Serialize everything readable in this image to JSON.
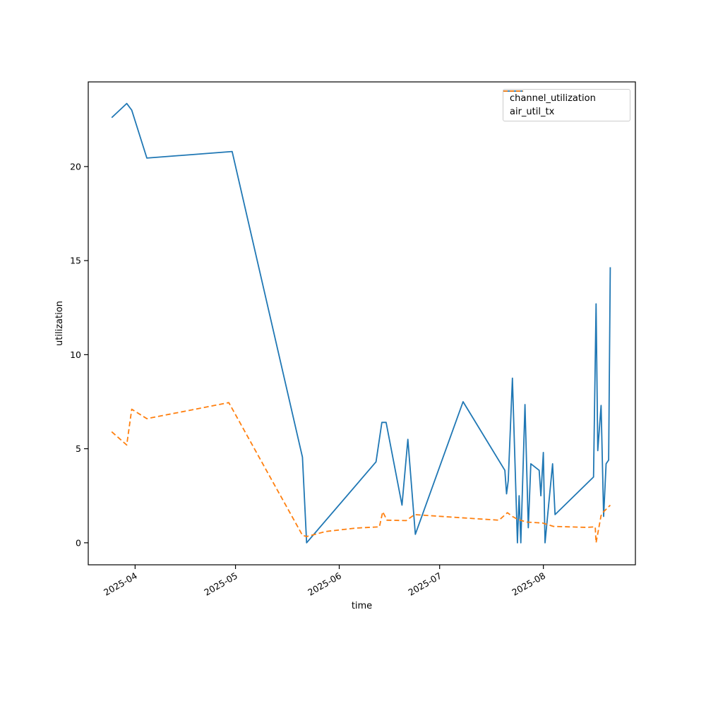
{
  "figure": {
    "background_color": "#ffffff",
    "text_color": "#000000",
    "frame_color": "#000000",
    "legend_border_color": "#cccccc"
  },
  "chart_data": {
    "type": "line",
    "title": "",
    "xlabel": "time",
    "ylabel": "utilization",
    "grid": false,
    "legend_position": "upper right",
    "x_domain": [
      "2025-03-18T00:00",
      "2025-08-28T12:00"
    ],
    "y_domain": [
      -1.17,
      24.5
    ],
    "x_ticks": [
      {
        "t": "2025-04-01T00:00",
        "label": "2025-04"
      },
      {
        "t": "2025-05-01T00:00",
        "label": "2025-05"
      },
      {
        "t": "2025-06-01T00:00",
        "label": "2025-06"
      },
      {
        "t": "2025-07-01T00:00",
        "label": "2025-07"
      },
      {
        "t": "2025-08-01T00:00",
        "label": "2025-08"
      }
    ],
    "y_ticks": [
      0,
      5,
      10,
      15,
      20
    ],
    "series": [
      {
        "name": "channel_utilization",
        "color": "#1f77b4",
        "line_style": "solid",
        "x": [
          "2025-03-25T00:00",
          "2025-03-29T12:00",
          "2025-03-31T00:00",
          "2025-04-04T12:00",
          "2025-04-30T00:00",
          "2025-05-21T00:00",
          "2025-05-22T06:00",
          "2025-06-12T00:00",
          "2025-06-13T18:00",
          "2025-06-15T00:00",
          "2025-06-19T18:00",
          "2025-06-21T12:00",
          "2025-06-23T18:00",
          "2025-07-08T00:00",
          "2025-07-20T12:00",
          "2025-07-21T00:00",
          "2025-07-21T12:00",
          "2025-07-22T18:00",
          "2025-07-24T06:00",
          "2025-07-24T18:00",
          "2025-07-25T06:00",
          "2025-07-26T12:00",
          "2025-07-27T12:00",
          "2025-07-28T06:00",
          "2025-07-30T18:00",
          "2025-07-31T06:00",
          "2025-08-01T00:00",
          "2025-08-01T12:00",
          "2025-08-03T18:00",
          "2025-08-04T12:00",
          "2025-08-16T00:00",
          "2025-08-16T18:00",
          "2025-08-17T06:00",
          "2025-08-18T06:00",
          "2025-08-19T00:00",
          "2025-08-19T18:00",
          "2025-08-20T12:00",
          "2025-08-21T00:00"
        ],
        "y": [
          22.6,
          23.35,
          23.0,
          20.45,
          20.8,
          4.55,
          0.0,
          4.3,
          6.4,
          6.4,
          2.0,
          5.5,
          0.45,
          7.5,
          3.85,
          2.6,
          3.3,
          8.75,
          0.0,
          2.5,
          0.0,
          7.35,
          0.8,
          4.2,
          3.85,
          2.5,
          4.8,
          0.0,
          4.2,
          1.5,
          3.5,
          12.7,
          4.9,
          7.3,
          1.4,
          4.2,
          4.4,
          14.65
        ]
      },
      {
        "name": "air_util_tx",
        "color": "#ff7f0e",
        "line_style": "dashed",
        "x": [
          "2025-03-25T00:00",
          "2025-03-29T12:00",
          "2025-03-31T00:00",
          "2025-04-04T12:00",
          "2025-04-29T00:00",
          "2025-05-21T00:00",
          "2025-05-22T06:00",
          "2025-05-28T00:00",
          "2025-06-06T00:00",
          "2025-06-13T00:00",
          "2025-06-14T00:00",
          "2025-06-15T06:00",
          "2025-06-21T00:00",
          "2025-06-23T12:00",
          "2025-07-06T00:00",
          "2025-07-18T18:00",
          "2025-07-21T06:00",
          "2025-07-22T18:00",
          "2025-07-24T06:00",
          "2025-07-27T00:00",
          "2025-07-31T18:00",
          "2025-08-04T00:00",
          "2025-08-14T00:00",
          "2025-08-16T12:00",
          "2025-08-16T18:00",
          "2025-08-18T06:00",
          "2025-08-19T00:00",
          "2025-08-21T00:00"
        ],
        "y": [
          5.9,
          5.2,
          7.1,
          6.6,
          7.45,
          0.4,
          0.33,
          0.6,
          0.78,
          0.85,
          1.65,
          1.2,
          1.18,
          1.5,
          1.35,
          1.2,
          1.6,
          1.4,
          1.25,
          1.1,
          1.05,
          0.87,
          0.82,
          0.85,
          0.0,
          1.45,
          1.65,
          2.0
        ]
      }
    ]
  }
}
